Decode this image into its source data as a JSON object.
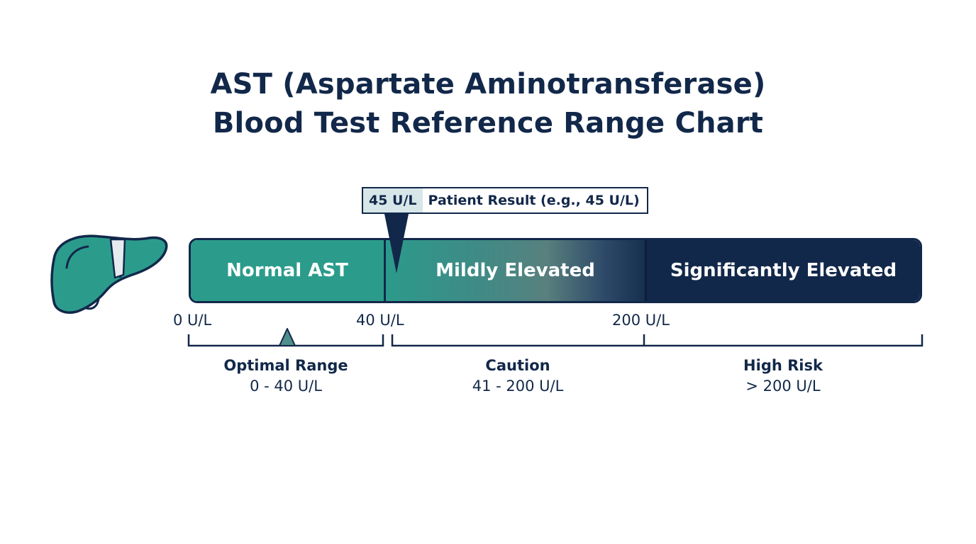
{
  "title": {
    "line1": "AST (Aspartate Aminotransferase)",
    "line2": "Blood Test Reference Range Chart"
  },
  "icons": {
    "organ": "liver-icon",
    "marker": "pointer-marker-icon",
    "optimal": "triangle-marker-icon"
  },
  "colors": {
    "normal": "#2b9c8c",
    "mild_start": "#2c9a8b",
    "mild_end": "#16304f",
    "significant": "#12284a",
    "text_dark": "#12284a",
    "callout_value_bg": "#d7e6e8"
  },
  "bar": {
    "segments": [
      {
        "label": "Normal AST"
      },
      {
        "label": "Mildly Elevated"
      },
      {
        "label": "Significantly Elevated"
      }
    ]
  },
  "patient": {
    "value_label": "45 U/L",
    "text": "Patient Result (e.g., 45 U/L)"
  },
  "ticks": {
    "t0": "0 U/L",
    "t40": "40 U/L",
    "t200": "200 U/L"
  },
  "zones": [
    {
      "name": "Optimal Range",
      "range": "0 - 40 U/L"
    },
    {
      "name": "Caution",
      "range": "41 - 200 U/L"
    },
    {
      "name": "High Risk",
      "range": "> 200 U/L"
    }
  ]
}
